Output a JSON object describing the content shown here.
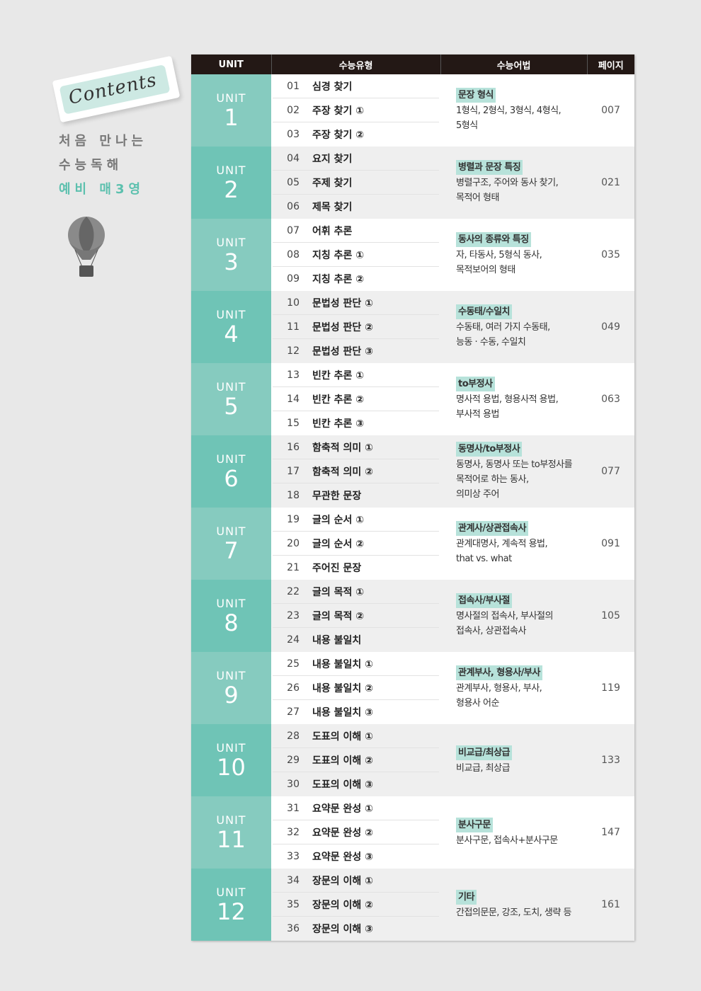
{
  "sidebar": {
    "tag": "Contents",
    "line1": "처음  만나는",
    "line2": "수능독해",
    "line3": "예비 매3영"
  },
  "colors": {
    "unit_odd": "#86cbbf",
    "unit_even": "#6fc4b6",
    "highlight": "#b7e2da",
    "header": "#231815"
  },
  "headers": [
    "UNIT",
    "수능유형",
    "수능어법",
    "페이지"
  ],
  "units": [
    {
      "label": "UNIT",
      "num": "1",
      "types": [
        [
          "01",
          "심경 찾기"
        ],
        [
          "02",
          "주장 찾기 ①"
        ],
        [
          "03",
          "주장 찾기 ②"
        ]
      ],
      "grammar_title": "문장 형식",
      "grammar": [
        "1형식, 2형식, 3형식, 4형식,",
        "5형식"
      ],
      "page": "007"
    },
    {
      "label": "UNIT",
      "num": "2",
      "types": [
        [
          "04",
          "요지 찾기"
        ],
        [
          "05",
          "주제 찾기"
        ],
        [
          "06",
          "제목 찾기"
        ]
      ],
      "grammar_title": "병렬과 문장 특징",
      "grammar": [
        "병렬구조, 주어와 동사 찾기,",
        "목적어 형태"
      ],
      "page": "021"
    },
    {
      "label": "UNIT",
      "num": "3",
      "types": [
        [
          "07",
          "어휘 추론"
        ],
        [
          "08",
          "지칭 추론 ①"
        ],
        [
          "09",
          "지칭 추론 ②"
        ]
      ],
      "grammar_title": "동사의 종류와 특징",
      "grammar": [
        "자, 타동사, 5형식 동사,",
        "목적보어의 형태"
      ],
      "page": "035"
    },
    {
      "label": "UNIT",
      "num": "4",
      "types": [
        [
          "10",
          "문법성 판단 ①"
        ],
        [
          "11",
          "문법성 판단 ②"
        ],
        [
          "12",
          "문법성 판단 ③"
        ]
      ],
      "grammar_title": "수동태/수일치",
      "grammar": [
        "수동태, 여러 가지 수동태,",
        "능동 · 수동, 수일치"
      ],
      "page": "049"
    },
    {
      "label": "UNIT",
      "num": "5",
      "types": [
        [
          "13",
          "빈칸 추론 ①"
        ],
        [
          "14",
          "빈칸 추론 ②"
        ],
        [
          "15",
          "빈칸 추론 ③"
        ]
      ],
      "grammar_title": "to부정사",
      "grammar": [
        "명사적 용법, 형용사적 용법,",
        "부사적 용법"
      ],
      "page": "063"
    },
    {
      "label": "UNIT",
      "num": "6",
      "types": [
        [
          "16",
          "함축적 의미 ①"
        ],
        [
          "17",
          "함축적 의미 ②"
        ],
        [
          "18",
          "무관한 문장"
        ]
      ],
      "grammar_title": "동명사/to부정사",
      "grammar": [
        "동명사, 동명사 또는 to부정사를",
        "목적어로 하는 동사,",
        "의미상 주어"
      ],
      "page": "077"
    },
    {
      "label": "UNIT",
      "num": "7",
      "types": [
        [
          "19",
          "글의 순서 ①"
        ],
        [
          "20",
          "글의 순서 ②"
        ],
        [
          "21",
          "주어진 문장"
        ]
      ],
      "grammar_title": "관계사/상관접속사",
      "grammar": [
        "관계대명사, 계속적 용법,",
        "that vs. what"
      ],
      "page": "091"
    },
    {
      "label": "UNIT",
      "num": "8",
      "types": [
        [
          "22",
          "글의 목적 ①"
        ],
        [
          "23",
          "글의 목적 ②"
        ],
        [
          "24",
          "내용 불일치"
        ]
      ],
      "grammar_title": "접속사/부사절",
      "grammar": [
        "명사절의 접속사, 부사절의",
        "접속사, 상관접속사"
      ],
      "page": "105"
    },
    {
      "label": "UNIT",
      "num": "9",
      "types": [
        [
          "25",
          "내용 불일치 ①"
        ],
        [
          "26",
          "내용 불일치 ②"
        ],
        [
          "27",
          "내용 불일치 ③"
        ]
      ],
      "grammar_title": "관계부사, 형용사/부사",
      "grammar": [
        "관계부사, 형용사, 부사,",
        "형용사 어순"
      ],
      "page": "119"
    },
    {
      "label": "UNIT",
      "num": "10",
      "types": [
        [
          "28",
          "도표의 이해 ①"
        ],
        [
          "29",
          "도표의 이해 ②"
        ],
        [
          "30",
          "도표의 이해 ③"
        ]
      ],
      "grammar_title": "비교급/최상급",
      "grammar": [
        "비교급, 최상급"
      ],
      "page": "133"
    },
    {
      "label": "UNIT",
      "num": "11",
      "types": [
        [
          "31",
          "요약문 완성 ①"
        ],
        [
          "32",
          "요약문 완성 ②"
        ],
        [
          "33",
          "요약문 완성 ③"
        ]
      ],
      "grammar_title": "분사구문",
      "grammar": [
        "분사구문, 접속사+분사구문"
      ],
      "page": "147"
    },
    {
      "label": "UNIT",
      "num": "12",
      "types": [
        [
          "34",
          "장문의 이해 ①"
        ],
        [
          "35",
          "장문의 이해 ②"
        ],
        [
          "36",
          "장문의 이해 ③"
        ]
      ],
      "grammar_title": "기타",
      "grammar": [
        "간접의문문, 강조, 도치, 생략 등"
      ],
      "page": "161"
    }
  ]
}
